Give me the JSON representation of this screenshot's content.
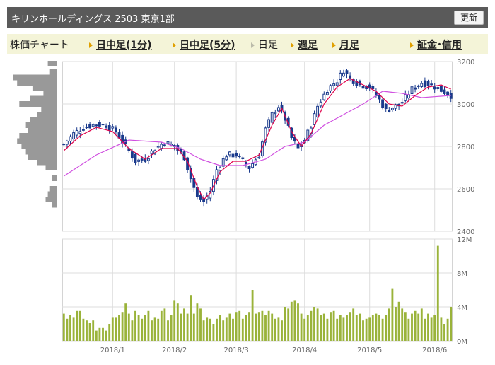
{
  "header": {
    "title": "キリンホールディングス  2503  東京1部",
    "refresh_label": "更新"
  },
  "tabs": {
    "chart_label": "株価チャート",
    "intraday_1": "日中足(1分)",
    "intraday_5": "日中足(5分)",
    "daily": "日足",
    "weekly": "週足",
    "monthly": "月足",
    "margin": "証金･信用"
  },
  "colors": {
    "up_candle": "#ffffff",
    "down_candle": "#1a3a8c",
    "ma_short": "#e0004a",
    "ma_long": "#d050e0",
    "volume": "#9ab33a",
    "profile": "#999999",
    "tab_accent": "#e0a000"
  },
  "chart_data": [
    {
      "type": "candlestick",
      "name": "price",
      "ylim": [
        2400,
        3200
      ],
      "y_ticks": [
        2400,
        2600,
        2800,
        3000,
        3200
      ],
      "x_ticks": [
        "2018/1",
        "2018/2",
        "2018/3",
        "2018/4",
        "2018/5",
        "2018/6"
      ],
      "x_tick_index": [
        15,
        34,
        53,
        74,
        94,
        114
      ],
      "grid": true,
      "anchors": [
        [
          0,
          2810
        ],
        [
          3,
          2860
        ],
        [
          6,
          2890
        ],
        [
          10,
          2905
        ],
        [
          13,
          2900
        ],
        [
          16,
          2870
        ],
        [
          19,
          2800
        ],
        [
          22,
          2730
        ],
        [
          25,
          2740
        ],
        [
          28,
          2790
        ],
        [
          31,
          2820
        ],
        [
          34,
          2800
        ],
        [
          37,
          2750
        ],
        [
          39,
          2650
        ],
        [
          41,
          2560
        ],
        [
          43,
          2540
        ],
        [
          45,
          2590
        ],
        [
          47,
          2690
        ],
        [
          50,
          2760
        ],
        [
          53,
          2760
        ],
        [
          55,
          2730
        ],
        [
          57,
          2700
        ],
        [
          60,
          2760
        ],
        [
          62,
          2880
        ],
        [
          64,
          2950
        ],
        [
          66,
          2990
        ],
        [
          68,
          2930
        ],
        [
          70,
          2840
        ],
        [
          72,
          2790
        ],
        [
          74,
          2830
        ],
        [
          76,
          2900
        ],
        [
          78,
          2990
        ],
        [
          81,
          3070
        ],
        [
          84,
          3110
        ],
        [
          86,
          3160
        ],
        [
          88,
          3120
        ],
        [
          91,
          3090
        ],
        [
          94,
          3080
        ],
        [
          97,
          3020
        ],
        [
          99,
          2970
        ],
        [
          102,
          2990
        ],
        [
          104,
          3010
        ],
        [
          107,
          3070
        ],
        [
          110,
          3100
        ],
        [
          113,
          3090
        ],
        [
          119,
          3040
        ]
      ],
      "ma_short_anchors": [
        [
          0,
          2780
        ],
        [
          5,
          2850
        ],
        [
          10,
          2890
        ],
        [
          15,
          2870
        ],
        [
          20,
          2790
        ],
        [
          25,
          2740
        ],
        [
          30,
          2790
        ],
        [
          35,
          2790
        ],
        [
          38,
          2730
        ],
        [
          41,
          2610
        ],
        [
          43,
          2550
        ],
        [
          45,
          2580
        ],
        [
          48,
          2680
        ],
        [
          52,
          2730
        ],
        [
          56,
          2730
        ],
        [
          60,
          2760
        ],
        [
          64,
          2900
        ],
        [
          67,
          2980
        ],
        [
          70,
          2870
        ],
        [
          73,
          2800
        ],
        [
          76,
          2860
        ],
        [
          80,
          3000
        ],
        [
          84,
          3080
        ],
        [
          88,
          3120
        ],
        [
          92,
          3090
        ],
        [
          96,
          3060
        ],
        [
          100,
          3000
        ],
        [
          104,
          2990
        ],
        [
          108,
          3040
        ],
        [
          112,
          3080
        ],
        [
          116,
          3090
        ],
        [
          119,
          3070
        ]
      ],
      "ma_long_anchors": [
        [
          0,
          2660
        ],
        [
          10,
          2760
        ],
        [
          20,
          2830
        ],
        [
          30,
          2820
        ],
        [
          36,
          2790
        ],
        [
          42,
          2740
        ],
        [
          48,
          2710
        ],
        [
          55,
          2710
        ],
        [
          62,
          2740
        ],
        [
          68,
          2800
        ],
        [
          74,
          2820
        ],
        [
          80,
          2900
        ],
        [
          86,
          2950
        ],
        [
          92,
          3000
        ],
        [
          98,
          3060
        ],
        [
          104,
          3050
        ],
        [
          110,
          3030
        ],
        [
          119,
          3040
        ]
      ]
    },
    {
      "type": "bar",
      "name": "volume",
      "ylim": [
        0,
        12
      ],
      "y_ticks": [
        "0M",
        "4M",
        "8M",
        "12M"
      ],
      "y_tick_values": [
        0,
        4,
        8,
        12
      ],
      "values": [
        3.2,
        2.6,
        3.0,
        2.8,
        3.6,
        3.6,
        2.6,
        2.4,
        2.1,
        2.4,
        1.2,
        1.6,
        1.6,
        1.2,
        2.0,
        2.8,
        2.8,
        3.0,
        3.4,
        4.4,
        3.2,
        2.4,
        3.6,
        3.0,
        2.6,
        3.0,
        3.6,
        2.4,
        2.8,
        2.6,
        3.6,
        3.8,
        2.4,
        3.0,
        4.8,
        4.4,
        3.2,
        3.8,
        3.2,
        5.4,
        3.2,
        4.4,
        3.8,
        2.4,
        2.8,
        2.6,
        2.0,
        2.6,
        3.0,
        2.4,
        2.8,
        3.2,
        2.6,
        3.4,
        3.6,
        2.6,
        3.0,
        3.4,
        6.0,
        3.2,
        3.4,
        3.6,
        3.0,
        3.6,
        3.2,
        2.6,
        2.8,
        2.4,
        4.0,
        3.8,
        4.6,
        4.8,
        4.4,
        3.2,
        2.6,
        3.0,
        3.6,
        4.0,
        3.8,
        3.0,
        3.2,
        2.6,
        3.4,
        3.6,
        2.6,
        3.0,
        2.8,
        3.0,
        3.4,
        3.8,
        3.0,
        3.2,
        2.4,
        2.6,
        2.8,
        3.0,
        3.2,
        3.0,
        2.6,
        3.0,
        3.8,
        6.2,
        4.0,
        4.6,
        3.8,
        3.4,
        2.6,
        3.2,
        3.6,
        3.2,
        3.8,
        2.6,
        3.2,
        2.8,
        3.0,
        11.2,
        2.8,
        2.0,
        2.6,
        4.0
      ]
    },
    {
      "type": "bar",
      "name": "price-volume-profile",
      "levels": [
        3190,
        3150,
        3125,
        3100,
        3075,
        3050,
        3025,
        3000,
        2975,
        2950,
        2925,
        2900,
        2875,
        2850,
        2825,
        2800,
        2775,
        2750,
        2725,
        2700,
        2650,
        2600,
        2575,
        2550,
        2525
      ],
      "values": [
        0.2,
        0.15,
        1,
        0.9,
        0.55,
        0.3,
        0.6,
        0.85,
        0.35,
        0.45,
        0.6,
        0.7,
        0.65,
        0.85,
        0.9,
        0.8,
        0.7,
        0.65,
        0.45,
        0.25,
        0.1,
        0.15,
        0.2,
        0.25,
        0.1
      ]
    }
  ]
}
